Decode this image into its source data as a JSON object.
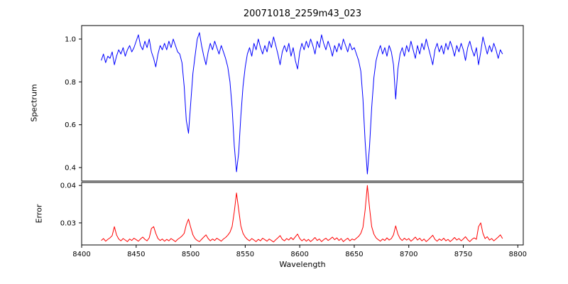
{
  "figure": {
    "title": "20071018_2259m43_023",
    "xlabel": "Wavelength",
    "background": "#ffffff"
  },
  "chart_data": [
    {
      "type": "line",
      "name": "spectrum",
      "ylabel": "Spectrum",
      "color": "#0000ff",
      "legend": "none",
      "grid": false,
      "x_start": 8418,
      "x_step": 2,
      "xlim": [
        8400,
        8805
      ],
      "ylim": [
        0.337,
        1.063
      ],
      "yticks": [
        0.4,
        0.6,
        0.8,
        1.0
      ],
      "ytick_labels": [
        "0.4",
        "0.6",
        "0.8",
        "1.0"
      ],
      "values": [
        0.9,
        0.93,
        0.89,
        0.92,
        0.91,
        0.94,
        0.88,
        0.92,
        0.95,
        0.93,
        0.96,
        0.92,
        0.95,
        0.97,
        0.94,
        0.96,
        0.99,
        1.02,
        0.97,
        0.95,
        0.99,
        0.96,
        1.0,
        0.94,
        0.91,
        0.87,
        0.93,
        0.97,
        0.95,
        0.98,
        0.95,
        0.99,
        0.96,
        1.0,
        0.97,
        0.94,
        0.93,
        0.89,
        0.78,
        0.62,
        0.56,
        0.7,
        0.84,
        0.92,
        1.0,
        1.03,
        0.97,
        0.92,
        0.88,
        0.94,
        0.98,
        0.95,
        0.99,
        0.96,
        0.93,
        0.97,
        0.94,
        0.91,
        0.87,
        0.8,
        0.68,
        0.5,
        0.38,
        0.47,
        0.64,
        0.78,
        0.87,
        0.93,
        0.96,
        0.92,
        0.98,
        0.95,
        1.0,
        0.96,
        0.93,
        0.97,
        0.94,
        0.99,
        0.96,
        1.01,
        0.97,
        0.93,
        0.88,
        0.94,
        0.97,
        0.94,
        0.98,
        0.92,
        0.96,
        0.9,
        0.86,
        0.94,
        0.98,
        0.95,
        0.99,
        0.96,
        1.0,
        0.97,
        0.93,
        0.99,
        0.96,
        1.02,
        0.98,
        0.95,
        0.99,
        0.96,
        0.92,
        0.97,
        0.94,
        0.98,
        0.95,
        1.0,
        0.97,
        0.94,
        0.98,
        0.95,
        0.96,
        0.93,
        0.9,
        0.85,
        0.72,
        0.52,
        0.37,
        0.5,
        0.68,
        0.82,
        0.9,
        0.94,
        0.97,
        0.93,
        0.96,
        0.92,
        0.97,
        0.94,
        0.88,
        0.72,
        0.86,
        0.93,
        0.96,
        0.92,
        0.97,
        0.94,
        0.99,
        0.95,
        0.91,
        0.97,
        0.93,
        0.98,
        0.95,
        1.0,
        0.96,
        0.92,
        0.88,
        0.95,
        0.98,
        0.94,
        0.97,
        0.93,
        0.98,
        0.95,
        0.99,
        0.96,
        0.92,
        0.97,
        0.94,
        0.98,
        0.95,
        0.9,
        0.96,
        0.99,
        0.95,
        0.92,
        0.96,
        0.88,
        0.94,
        1.01,
        0.97,
        0.93,
        0.97,
        0.94,
        0.98,
        0.95,
        0.91,
        0.95,
        0.93
      ]
    },
    {
      "type": "line",
      "name": "error",
      "ylabel": "Error",
      "xlabel": "Wavelength",
      "color": "#ff0000",
      "legend": "none",
      "grid": false,
      "x_start": 8418,
      "x_step": 2,
      "xlim": [
        8400,
        8805
      ],
      "ylim": [
        0.0241,
        0.0408
      ],
      "yticks": [
        0.03,
        0.04
      ],
      "ytick_labels": [
        "0.03",
        "0.04"
      ],
      "xticks": [
        8400,
        8450,
        8500,
        8550,
        8600,
        8650,
        8700,
        8750,
        8800
      ],
      "xtick_labels": [
        "8400",
        "8450",
        "8500",
        "8550",
        "8600",
        "8650",
        "8700",
        "8750",
        "8800"
      ],
      "values": [
        0.0253,
        0.0258,
        0.0251,
        0.0256,
        0.026,
        0.0266,
        0.029,
        0.0268,
        0.0257,
        0.0252,
        0.0258,
        0.0254,
        0.025,
        0.0257,
        0.0253,
        0.0259,
        0.0255,
        0.0251,
        0.0257,
        0.0262,
        0.0256,
        0.0252,
        0.026,
        0.0285,
        0.029,
        0.0272,
        0.0258,
        0.0253,
        0.0257,
        0.0251,
        0.0256,
        0.0252,
        0.0258,
        0.0254,
        0.025,
        0.0256,
        0.026,
        0.0265,
        0.0272,
        0.0295,
        0.031,
        0.0288,
        0.0268,
        0.0258,
        0.0253,
        0.025,
        0.0256,
        0.0262,
        0.0268,
        0.0258,
        0.0252,
        0.0257,
        0.0253,
        0.0259,
        0.0255,
        0.0251,
        0.0257,
        0.0261,
        0.0267,
        0.0275,
        0.029,
        0.033,
        0.038,
        0.0335,
        0.0292,
        0.0272,
        0.0262,
        0.0256,
        0.0252,
        0.0258,
        0.0254,
        0.025,
        0.0256,
        0.0252,
        0.0259,
        0.0255,
        0.0251,
        0.0257,
        0.0253,
        0.0249,
        0.0255,
        0.026,
        0.0266,
        0.0256,
        0.0252,
        0.0258,
        0.0254,
        0.0261,
        0.0255,
        0.0263,
        0.027,
        0.0258,
        0.0252,
        0.0257,
        0.0251,
        0.0256,
        0.025,
        0.0255,
        0.0261,
        0.0253,
        0.0257,
        0.025,
        0.0255,
        0.0259,
        0.0253,
        0.0257,
        0.0262,
        0.0255,
        0.026,
        0.0253,
        0.0258,
        0.025,
        0.0255,
        0.0259,
        0.0252,
        0.0257,
        0.0254,
        0.0259,
        0.0264,
        0.0272,
        0.0288,
        0.0335,
        0.04,
        0.034,
        0.029,
        0.027,
        0.026,
        0.0255,
        0.0251,
        0.0257,
        0.0253,
        0.026,
        0.0254,
        0.0258,
        0.0268,
        0.0292,
        0.027,
        0.0258,
        0.0253,
        0.0259,
        0.0254,
        0.0258,
        0.0251,
        0.0256,
        0.0262,
        0.0254,
        0.0259,
        0.0252,
        0.0257,
        0.025,
        0.0255,
        0.0261,
        0.0267,
        0.0256,
        0.0251,
        0.0257,
        0.0253,
        0.0259,
        0.0252,
        0.0256,
        0.025,
        0.0255,
        0.0261,
        0.0254,
        0.0258,
        0.0252,
        0.0257,
        0.0263,
        0.0255,
        0.025,
        0.0256,
        0.026,
        0.0256,
        0.029,
        0.03,
        0.0272,
        0.0258,
        0.0263,
        0.0254,
        0.0258,
        0.0252,
        0.0257,
        0.0262,
        0.0268,
        0.0258
      ]
    }
  ]
}
